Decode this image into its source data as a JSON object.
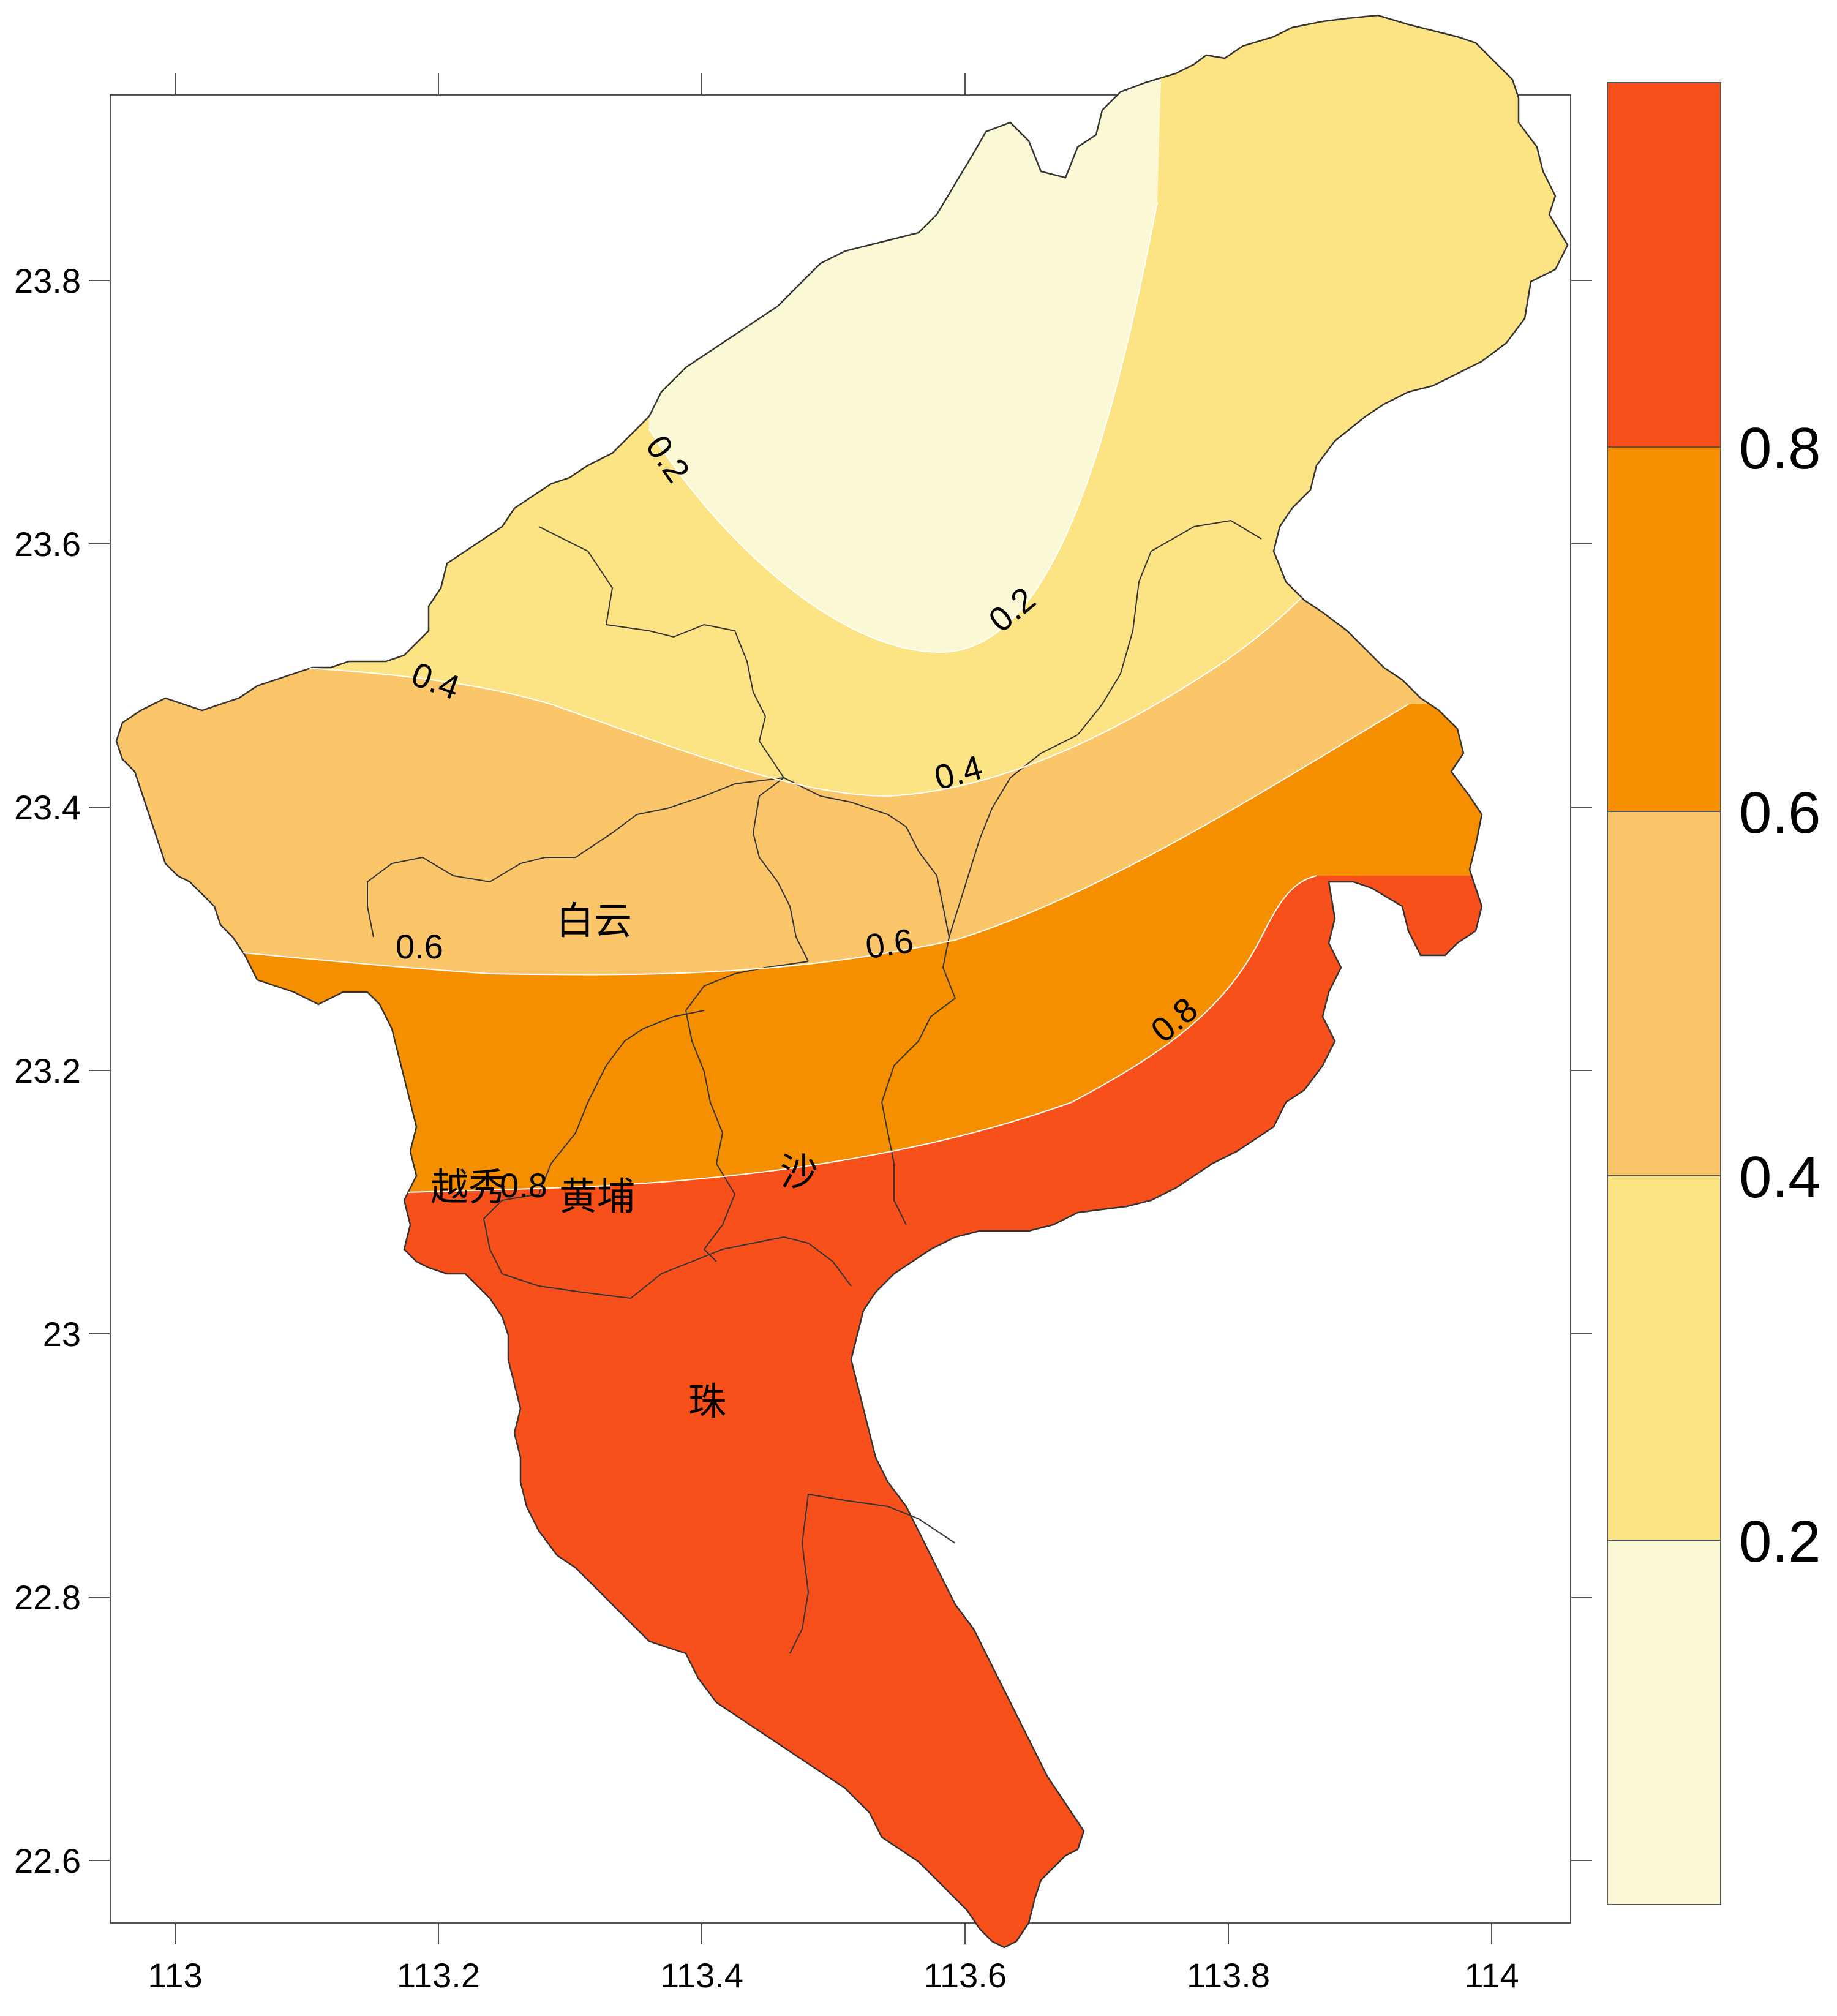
{
  "map": {
    "x_ticks": [
      "113",
      "113.2",
      "113.4",
      "113.6",
      "113.8",
      "114"
    ],
    "y_ticks": [
      "23.8",
      "23.6",
      "23.4",
      "23.2",
      "23",
      "22.8",
      "22.6"
    ],
    "contour_labels": [
      "0.2",
      "0.2",
      "0.4",
      "0.4",
      "0.6",
      "0.6",
      "0.8",
      "0.8"
    ],
    "districts": [
      "白云",
      "越秀",
      "黄埔",
      "沙",
      "珠"
    ]
  },
  "legend": {
    "labels": [
      "0.8",
      "0.6",
      "0.4",
      "0.2"
    ],
    "colors": [
      "#f8501a",
      "#f68f00",
      "#fbc66a",
      "#fce484",
      "#fbf8d6"
    ]
  },
  "colors": {
    "band_0_02": "#fbf8d6",
    "band_02_04": "#fce484",
    "band_04_06": "#fbc66a",
    "band_06_08": "#f68f00",
    "band_08_plus": "#f8501a"
  }
}
